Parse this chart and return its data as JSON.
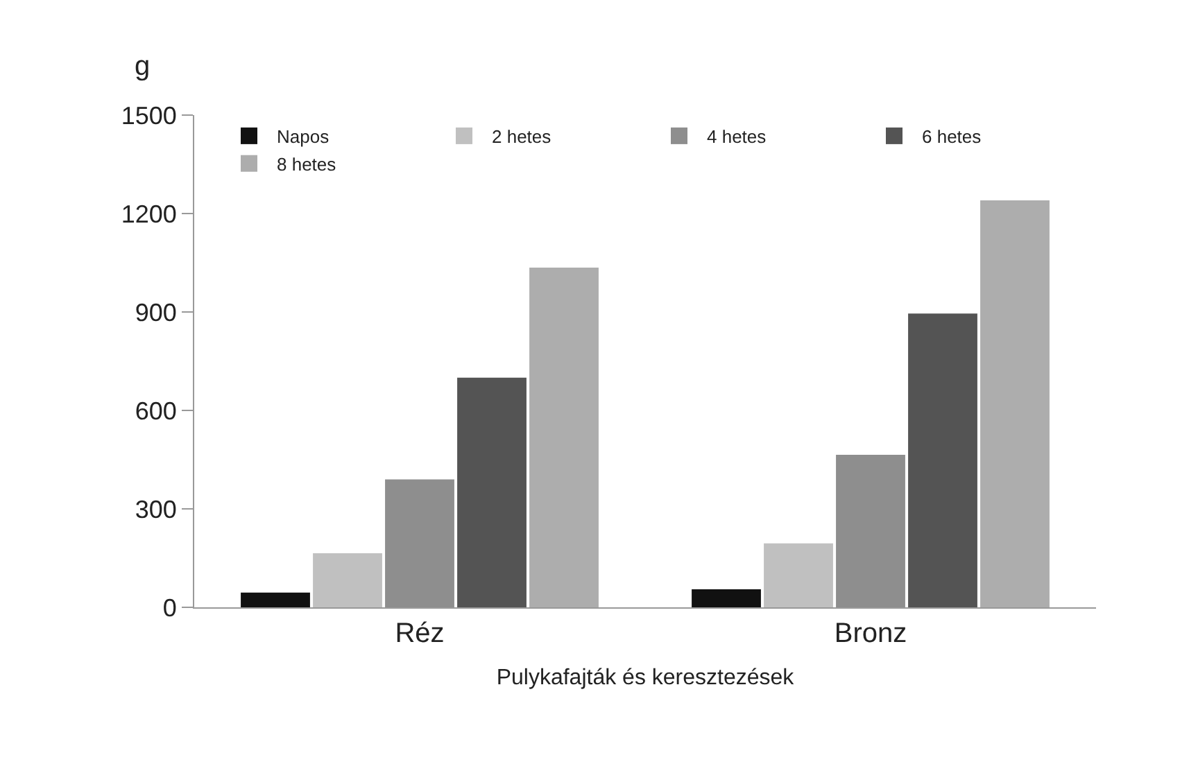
{
  "chart_data": {
    "type": "bar",
    "ylabel": "g",
    "xlabel": "Pulykafajták és keresztezések",
    "categories": [
      "Réz",
      "Bronz"
    ],
    "series": [
      {
        "name": "Napos",
        "color": "#111111",
        "values": [
          45,
          55
        ]
      },
      {
        "name": "2 hetes",
        "color": "#c0c0c0",
        "values": [
          165,
          195
        ]
      },
      {
        "name": "4 hetes",
        "color": "#8e8e8e",
        "values": [
          390,
          465
        ]
      },
      {
        "name": "6 hetes",
        "color": "#545454",
        "values": [
          700,
          895
        ]
      },
      {
        "name": "8 hetes",
        "color": "#adadad",
        "values": [
          1035,
          1240
        ]
      }
    ],
    "ylim": [
      0,
      1500
    ],
    "yticks": [
      0,
      300,
      600,
      900,
      1200,
      1500
    ],
    "legend": "top left"
  }
}
